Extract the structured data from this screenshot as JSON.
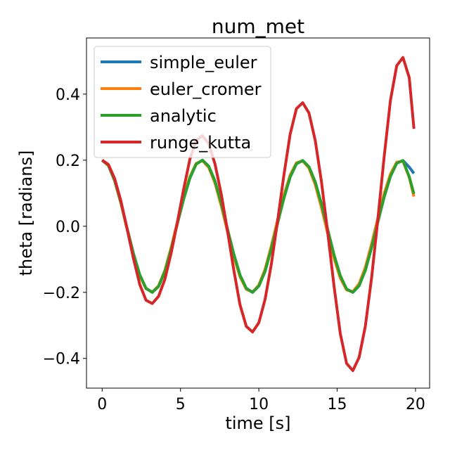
{
  "chart_data": {
    "type": "line",
    "title": "num_met",
    "xlabel": "time [s]",
    "ylabel": "theta [radians]",
    "xlim": [
      -1.0,
      20.9
    ],
    "ylim": [
      -0.49,
      0.57
    ],
    "x_ticks": [
      0,
      5,
      10,
      15,
      20
    ],
    "x_tick_labels": [
      "0",
      "5",
      "10",
      "15",
      "20"
    ],
    "y_ticks": [
      -0.4,
      -0.2,
      0.0,
      0.2,
      0.4
    ],
    "y_tick_labels": [
      "−0.4",
      "−0.2",
      "0.0",
      "0.2",
      "0.4"
    ],
    "grid": false,
    "legend_position": "top-left",
    "x": [
      0.0,
      0.4,
      0.8,
      1.2,
      1.6,
      2.0,
      2.4,
      2.8,
      3.2,
      3.6,
      4.0,
      4.4,
      4.8,
      5.2,
      5.6,
      6.0,
      6.4,
      6.8,
      7.2,
      7.6,
      8.0,
      8.4,
      8.8,
      9.2,
      9.6,
      10.0,
      10.4,
      10.8,
      11.2,
      11.6,
      12.0,
      12.4,
      12.8,
      13.2,
      13.6,
      14.0,
      14.4,
      14.8,
      15.2,
      15.6,
      16.0,
      16.4,
      16.8,
      17.2,
      17.6,
      18.0,
      18.4,
      18.8,
      19.2,
      19.6,
      19.9
    ],
    "series": [
      {
        "name": "simple_euler",
        "color": "#1f77b4",
        "values": [
          0.2,
          0.184,
          0.138,
          0.071,
          -0.008,
          -0.083,
          -0.147,
          -0.188,
          -0.2,
          -0.182,
          -0.137,
          -0.07,
          0.008,
          0.082,
          0.146,
          0.188,
          0.2,
          0.182,
          0.137,
          0.07,
          -0.009,
          -0.084,
          -0.148,
          -0.188,
          -0.2,
          -0.181,
          -0.136,
          -0.067,
          0.01,
          0.085,
          0.149,
          0.189,
          0.199,
          0.18,
          0.134,
          0.067,
          -0.011,
          -0.087,
          -0.15,
          -0.19,
          -0.2,
          -0.18,
          -0.133,
          -0.064,
          0.014,
          0.089,
          0.151,
          0.191,
          0.199,
          0.179,
          0.16
        ]
      },
      {
        "name": "euler_cromer",
        "color": "#ff7f0e",
        "values": [
          0.2,
          0.184,
          0.137,
          0.069,
          -0.01,
          -0.086,
          -0.149,
          -0.189,
          -0.199,
          -0.18,
          -0.134,
          -0.065,
          0.013,
          0.088,
          0.15,
          0.19,
          0.199,
          0.178,
          0.131,
          0.062,
          -0.016,
          -0.091,
          -0.153,
          -0.191,
          -0.199,
          -0.178,
          -0.13,
          -0.059,
          0.019,
          0.094,
          0.155,
          0.192,
          0.198,
          0.176,
          0.126,
          0.056,
          -0.022,
          -0.097,
          -0.157,
          -0.193,
          -0.198,
          -0.174,
          -0.124,
          -0.053,
          0.025,
          0.099,
          0.158,
          0.194,
          0.197,
          0.148,
          0.09
        ]
      },
      {
        "name": "analytic",
        "color": "#2ca02c",
        "values": [
          0.2,
          0.184,
          0.138,
          0.071,
          -0.008,
          -0.083,
          -0.147,
          -0.188,
          -0.2,
          -0.182,
          -0.137,
          -0.07,
          0.008,
          0.082,
          0.146,
          0.188,
          0.2,
          0.182,
          0.137,
          0.07,
          -0.009,
          -0.084,
          -0.148,
          -0.188,
          -0.2,
          -0.181,
          -0.136,
          -0.067,
          0.01,
          0.085,
          0.149,
          0.189,
          0.199,
          0.18,
          0.134,
          0.067,
          -0.011,
          -0.087,
          -0.15,
          -0.19,
          -0.2,
          -0.18,
          -0.133,
          -0.064,
          0.014,
          0.089,
          0.151,
          0.191,
          0.199,
          0.15,
          0.098
        ]
      },
      {
        "name": "runge_kutta",
        "color": "#d62728",
        "values": [
          0.2,
          0.187,
          0.144,
          0.076,
          -0.01,
          -0.098,
          -0.176,
          -0.224,
          -0.234,
          -0.212,
          -0.161,
          -0.082,
          0.012,
          0.112,
          0.203,
          0.26,
          0.274,
          0.25,
          0.189,
          0.098,
          -0.014,
          -0.132,
          -0.238,
          -0.303,
          -0.32,
          -0.292,
          -0.221,
          -0.114,
          0.017,
          0.155,
          0.279,
          0.356,
          0.374,
          0.343,
          0.26,
          0.134,
          -0.02,
          -0.181,
          -0.325,
          -0.415,
          -0.437,
          -0.397,
          -0.302,
          -0.155,
          0.023,
          0.211,
          0.381,
          0.486,
          0.511,
          0.45,
          0.295
        ]
      }
    ]
  }
}
